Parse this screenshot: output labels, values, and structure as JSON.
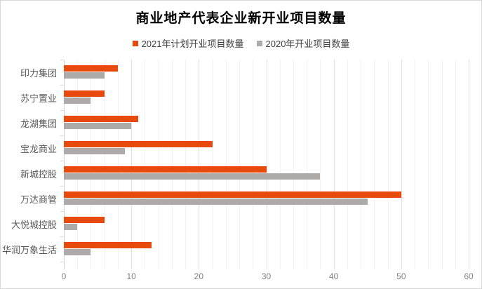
{
  "chart_data": {
    "type": "bar",
    "orientation": "horizontal",
    "title": "商业地产代表企业新开业项目数量",
    "categories": [
      "印力集团",
      "苏宁置业",
      "龙湖集团",
      "宝龙商业",
      "新城控股",
      "万达商管",
      "大悦城控股",
      "华润万象生活"
    ],
    "series": [
      {
        "name": "2021年计划开业项目数量",
        "color": "#e8490c",
        "values": [
          8,
          6,
          11,
          22,
          30,
          50,
          6,
          13
        ]
      },
      {
        "name": "2020年开业项目数量",
        "color": "#adaaaa",
        "values": [
          6,
          4,
          10,
          9,
          38,
          45,
          2,
          4
        ]
      }
    ],
    "xlim": [
      0,
      60
    ],
    "x_ticks": [
      0,
      10,
      20,
      30,
      40,
      50,
      60
    ],
    "minor_step": 2,
    "major_step": 10,
    "grid": "vertical-minor-and-major",
    "legend_position": "top-center",
    "colors": {
      "minor_grid": "#f2f2f2",
      "major_grid": "#e2e2e2",
      "axis_line": "#d2d2d2",
      "tick": "#d9d9d9",
      "category_label": "#595959",
      "value_label": "#808080",
      "legend_text": "#404040",
      "title_text": "#000000",
      "border": "#d9d9d9"
    }
  }
}
